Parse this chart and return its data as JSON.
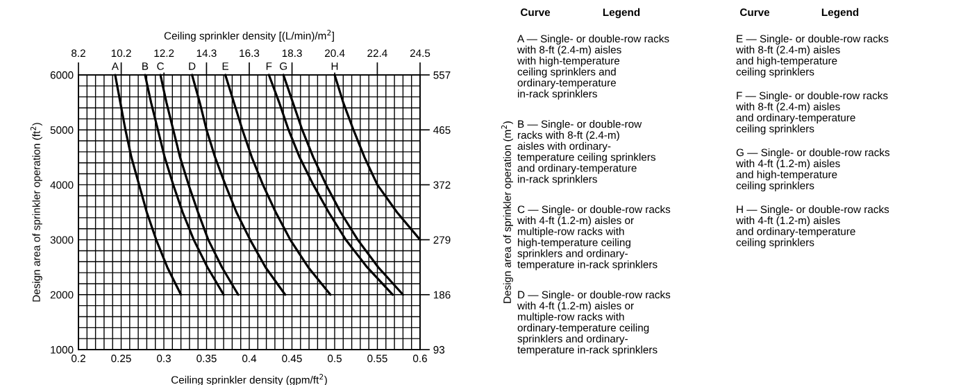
{
  "chart_data": {
    "type": "line",
    "xlabel": "Ceiling sprinkler density (gpm/ft$^{2}$)",
    "ylabel": "Design area of sprinkler operation (ft$^{2}$)",
    "x2label": "Ceiling sprinkler density [(L/min)/m$^{2}$]",
    "y2label": "Design area of sprinkler operation (m$^{2}$)",
    "xlim": [
      0.2,
      0.6
    ],
    "ylim": [
      1000,
      6000
    ],
    "xticks": [
      0.2,
      {
        "value": 0.21,
        "label": null
      },
      {
        "value": 0.22,
        "label": null
      },
      {
        "value": 0.23,
        "label": null
      },
      {
        "value": 0.24,
        "label": null
      },
      0.25,
      {
        "value": 0.26,
        "label": null
      },
      {
        "value": 0.27,
        "label": null
      },
      {
        "value": 0.28,
        "label": null
      },
      {
        "value": 0.29,
        "label": null
      },
      0.3,
      {
        "value": 0.31,
        "label": null
      },
      {
        "value": 0.32,
        "label": null
      },
      {
        "value": 0.33,
        "label": null
      },
      {
        "value": 0.34,
        "label": null
      },
      0.35,
      {
        "value": 0.36,
        "label": null
      },
      {
        "value": 0.37,
        "label": null
      },
      {
        "value": 0.38,
        "label": null
      },
      {
        "value": 0.39,
        "label": null
      },
      0.4,
      {
        "value": 0.41,
        "label": null
      },
      {
        "value": 0.42,
        "label": null
      },
      {
        "value": 0.43,
        "label": null
      },
      {
        "value": 0.44,
        "label": null
      },
      0.45,
      {
        "value": 0.46,
        "label": null
      },
      {
        "value": 0.47,
        "label": null
      },
      {
        "value": 0.48,
        "label": null
      },
      {
        "value": 0.49,
        "label": null
      },
      0.5,
      {
        "value": 0.51,
        "label": null
      },
      {
        "value": 0.52,
        "label": null
      },
      {
        "value": 0.53,
        "label": null
      },
      {
        "value": 0.54,
        "label": null
      },
      0.55,
      {
        "value": 0.56,
        "label": null
      },
      {
        "value": 0.57,
        "label": null
      },
      {
        "value": 0.58,
        "label": null
      },
      {
        "value": 0.59,
        "label": null
      },
      0.6
    ],
    "yticks": [
      1000,
      {
        "value": 1200,
        "label": null
      },
      {
        "value": 1400,
        "label": null
      },
      {
        "value": 1600,
        "label": null
      },
      {
        "value": 1800,
        "label": null
      },
      2000,
      {
        "value": 2200,
        "label": null
      },
      {
        "value": 2400,
        "label": null
      },
      {
        "value": 2600,
        "label": null
      },
      {
        "value": 2800,
        "label": null
      },
      3000,
      {
        "value": 3200,
        "label": null
      },
      {
        "value": 3400,
        "label": null
      },
      {
        "value": 3600,
        "label": null
      },
      {
        "value": 3800,
        "label": null
      },
      4000,
      {
        "value": 4200,
        "label": null
      },
      {
        "value": 4400,
        "label": null
      },
      {
        "value": 4600,
        "label": null
      },
      {
        "value": 4800,
        "label": null
      },
      5000,
      {
        "value": 5200,
        "label": null
      },
      {
        "value": 5400,
        "label": null
      },
      {
        "value": 5600,
        "label": null
      },
      {
        "value": 5800,
        "label": null
      },
      6000
    ],
    "x2lim": [
      8.15,
      24.45
    ],
    "x2ticks": [
      {
        "value": 8.15,
        "label": "8.2"
      },
      {
        "value": 10.19,
        "label": "10.2"
      },
      {
        "value": 12.23,
        "label": "12.2"
      },
      {
        "value": 14.26,
        "label": "14.3"
      },
      {
        "value": 16.3,
        "label": "16.3"
      },
      {
        "value": 18.34,
        "label": "18.3"
      },
      {
        "value": 20.38,
        "label": "20.4"
      },
      {
        "value": 22.41,
        "label": "22.4"
      },
      {
        "value": 24.45,
        "label": "24.5"
      }
    ],
    "y2lim": [
      92.9,
      557.4
    ],
    "y2ticks": [
      {
        "value": 92.9,
        "label": "93"
      },
      {
        "value": 185.8,
        "label": "186"
      },
      {
        "value": 278.7,
        "label": "279"
      },
      {
        "value": 371.6,
        "label": "372"
      },
      {
        "value": 464.5,
        "label": "465"
      },
      {
        "value": 557.4,
        "label": "557"
      }
    ],
    "grid": true,
    "legend": false,
    "line_style": "solid",
    "marker": "none",
    "series": [
      {
        "color": "#000000",
        "x": [
          0.243,
          0.249,
          0.255,
          0.262,
          0.271,
          0.28,
          0.291,
          0.304,
          0.32
        ],
        "values": [
          6000,
          5500,
          5000,
          4500,
          4000,
          3500,
          3000,
          2500,
          2000
        ]
      },
      {
        "color": "#000000",
        "x": [
          0.278,
          0.285,
          0.293,
          0.301,
          0.311,
          0.322,
          0.335,
          0.351,
          0.37
        ],
        "values": [
          6000,
          5500,
          5000,
          4500,
          4000,
          3500,
          3000,
          2500,
          2000
        ]
      },
      {
        "color": "#000000",
        "x": [
          0.296,
          0.303,
          0.311,
          0.319,
          0.329,
          0.34,
          0.352,
          0.368,
          0.387
        ],
        "values": [
          6000,
          5500,
          5000,
          4500,
          4000,
          3500,
          3000,
          2500,
          2000
        ]
      },
      {
        "color": "#000000",
        "x": [
          0.333,
          0.342,
          0.35,
          0.36,
          0.372,
          0.385,
          0.401,
          0.419,
          0.442
        ],
        "values": [
          6000,
          5500,
          5000,
          4500,
          4000,
          3500,
          3000,
          2500,
          2000
        ]
      },
      {
        "color": "#000000",
        "x": [
          0.372,
          0.382,
          0.392,
          0.403,
          0.416,
          0.431,
          0.448,
          0.469,
          0.495
        ],
        "values": [
          6000,
          5500,
          5000,
          4500,
          4000,
          3500,
          3000,
          2500,
          2000
        ]
      },
      {
        "color": "#000000",
        "x": [
          0.423,
          0.435,
          0.446,
          0.459,
          0.475,
          0.493,
          0.513,
          0.538,
          0.568
        ],
        "values": [
          6000,
          5500,
          5000,
          4500,
          4000,
          3500,
          3000,
          2500,
          2000
        ]
      },
      {
        "color": "#000000",
        "x": [
          0.44,
          0.451,
          0.462,
          0.475,
          0.49,
          0.507,
          0.527,
          0.551,
          0.58
        ],
        "values": [
          6000,
          5500,
          5000,
          4500,
          4000,
          3500,
          3000,
          2500,
          2000
        ]
      },
      {
        "color": "#000000",
        "x": [
          0.5,
          0.51,
          0.522,
          0.535,
          0.55,
          0.573,
          0.6
        ],
        "values": [
          6000,
          5500,
          5000,
          4500,
          4000,
          3500,
          3000
        ]
      }
    ],
    "annotations": [
      "Curve",
      "Legend",
      "Curve",
      "Legend",
      "A — Single- or double-row racks\nwith 8-ft (2.4-m) aisles\nwith high-temperature\nceiling sprinklers and\nordinary-temperature\nin-rack sprinklers",
      "B — Single- or double-row\nracks with 8-ft (2.4-m)\naisles with ordinary-\ntemperature ceiling sprinklers\nand ordinary-temperature\nin-rack sprinklers",
      "C — Single- or double-row racks\nwith 4-ft (1.2-m) aisles or\nmultiple-row racks with\nhigh-temperature ceiling\nsprinklers and ordinary-\ntemperature in-rack sprinklers",
      "D — Single- or double-row racks\nwith 4-ft (1.2-m) aisles or\nmultiple-row racks with\nordinary-temperature ceiling\nsprinklers and ordinary-\ntemperature in-rack sprinklers",
      "E — Single- or double-row racks\nwith 8-ft (2.4-m) aisles\nand high-temperature\nceiling sprinklers",
      "F — Single- or double-row racks\nwith 8-ft (2.4-m) aisles\nand ordinary-temperature\nceiling sprinklers",
      "G — Single- or double-row racks\nwith 4-ft (1.2-m) aisles\nand high-temperature\nceiling sprinklers",
      "H — Single- or double-row racks\nwith 4-ft (1.2-m) aisles\nand ordinary-temperature\nceiling sprinklers",
      {
        "text": "A",
        "x": 0.243,
        "y": 6000
      },
      {
        "text": "B",
        "x": 0.278,
        "y": 6000
      },
      {
        "text": "C",
        "x": 0.296,
        "y": 6000
      },
      {
        "text": "D",
        "x": 0.333,
        "y": 6000
      },
      {
        "text": "E",
        "x": 0.372,
        "y": 6000
      },
      {
        "text": "F",
        "x": 0.423,
        "y": 6000
      },
      {
        "text": "G",
        "x": 0.44,
        "y": 6000
      },
      {
        "text": "H",
        "x": 0.5,
        "y": 6000
      }
    ]
  }
}
